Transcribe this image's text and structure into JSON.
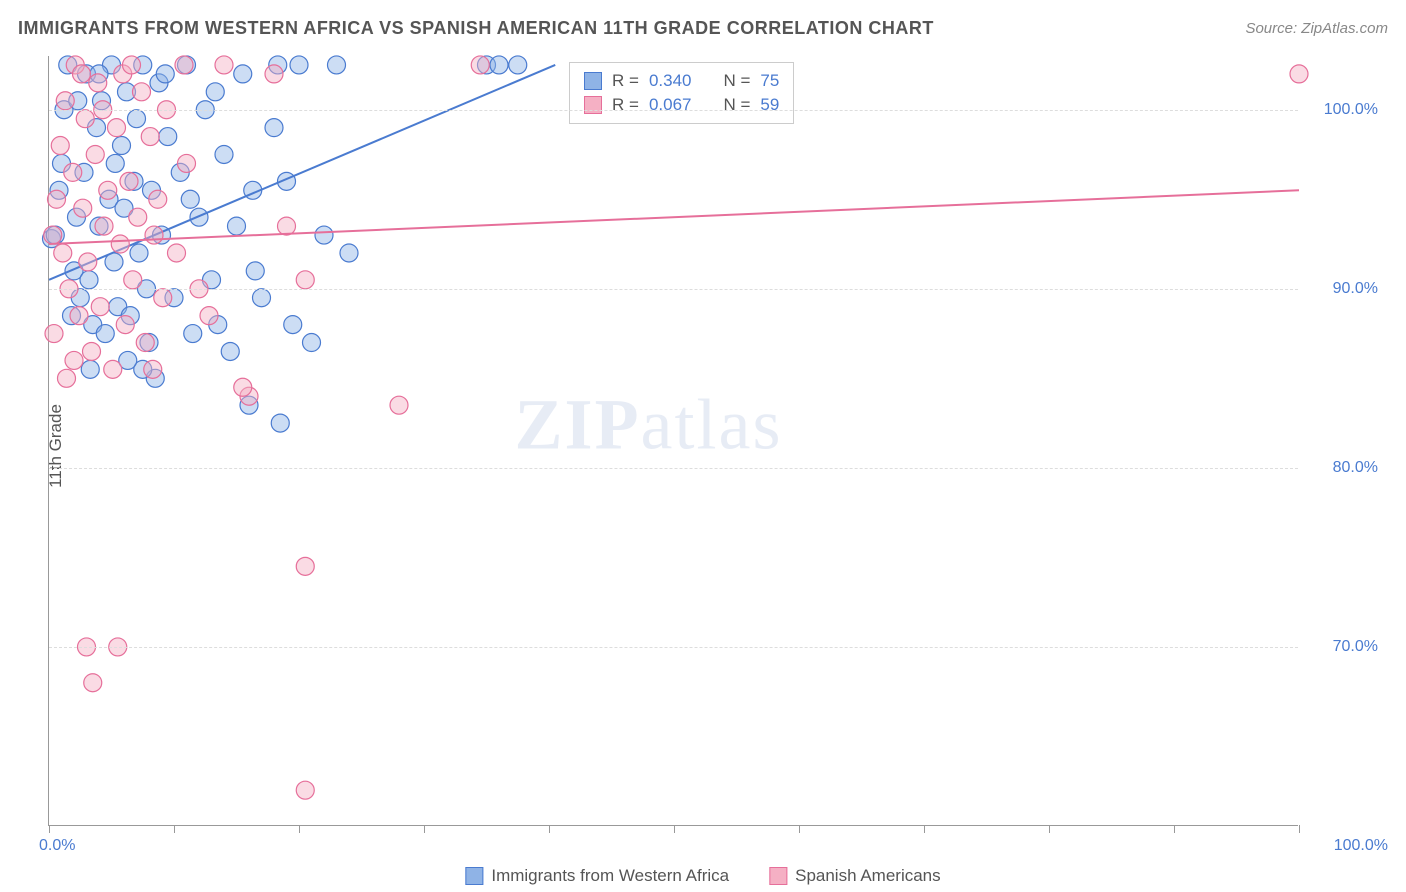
{
  "title": "IMMIGRANTS FROM WESTERN AFRICA VS SPANISH AMERICAN 11TH GRADE CORRELATION CHART",
  "source": "Source: ZipAtlas.com",
  "ylabel": "11th Grade",
  "watermark_a": "ZIP",
  "watermark_b": "atlas",
  "chart": {
    "type": "scatter",
    "background_color": "#ffffff",
    "grid_color": "#dddddd",
    "axis_color": "#999999",
    "tick_label_color": "#4a7bd0",
    "tick_fontsize": 16,
    "title_fontsize": 18,
    "title_color": "#555555",
    "xlim": [
      0,
      100
    ],
    "ylim": [
      60,
      103
    ],
    "xtick_positions": [
      0,
      10,
      20,
      30,
      40,
      50,
      60,
      70,
      80,
      90,
      100
    ],
    "xtick_labels_shown": {
      "0": "0.0%",
      "100": "100.0%"
    },
    "ytick_positions": [
      70,
      80,
      90,
      100
    ],
    "ytick_labels": [
      "70.0%",
      "80.0%",
      "90.0%",
      "100.0%"
    ],
    "marker_radius": 9,
    "marker_opacity": 0.45,
    "line_width": 2,
    "series": [
      {
        "name": "Immigrants from Western Africa",
        "color_fill": "#8fb3e6",
        "color_stroke": "#4a7bd0",
        "R": "0.340",
        "N": "75",
        "trend": {
          "x1": 0,
          "y1": 90.5,
          "x2": 40.5,
          "y2": 102.5
        },
        "points": [
          [
            0.2,
            92.8
          ],
          [
            0.5,
            93.0
          ],
          [
            0.8,
            95.5
          ],
          [
            1.0,
            97.0
          ],
          [
            1.2,
            100.0
          ],
          [
            1.5,
            102.5
          ],
          [
            2.0,
            91.0
          ],
          [
            2.2,
            94.0
          ],
          [
            2.5,
            89.5
          ],
          [
            2.8,
            96.5
          ],
          [
            3.0,
            102.0
          ],
          [
            3.2,
            90.5
          ],
          [
            3.5,
            88.0
          ],
          [
            3.8,
            99.0
          ],
          [
            4.0,
            93.5
          ],
          [
            4.2,
            100.5
          ],
          [
            4.5,
            87.5
          ],
          [
            4.8,
            95.0
          ],
          [
            5.0,
            102.5
          ],
          [
            5.2,
            91.5
          ],
          [
            5.5,
            89.0
          ],
          [
            5.8,
            98.0
          ],
          [
            6.0,
            94.5
          ],
          [
            6.2,
            101.0
          ],
          [
            6.5,
            88.5
          ],
          [
            6.8,
            96.0
          ],
          [
            7.0,
            99.5
          ],
          [
            7.2,
            92.0
          ],
          [
            7.5,
            102.5
          ],
          [
            7.8,
            90.0
          ],
          [
            8.0,
            87.0
          ],
          [
            8.2,
            95.5
          ],
          [
            8.5,
            85.0
          ],
          [
            8.8,
            101.5
          ],
          [
            9.0,
            93.0
          ],
          [
            9.5,
            98.5
          ],
          [
            10.0,
            89.5
          ],
          [
            10.5,
            96.5
          ],
          [
            11.0,
            102.5
          ],
          [
            11.5,
            87.5
          ],
          [
            12.0,
            94.0
          ],
          [
            12.5,
            100.0
          ],
          [
            13.0,
            90.5
          ],
          [
            13.5,
            88.0
          ],
          [
            14.0,
            97.5
          ],
          [
            14.5,
            86.5
          ],
          [
            15.0,
            93.5
          ],
          [
            15.5,
            102.0
          ],
          [
            16.0,
            83.5
          ],
          [
            16.5,
            91.0
          ],
          [
            17.0,
            89.5
          ],
          [
            18.0,
            99.0
          ],
          [
            18.5,
            82.5
          ],
          [
            19.0,
            96.0
          ],
          [
            20.0,
            102.5
          ],
          [
            21.0,
            87.0
          ],
          [
            22.0,
            93.0
          ],
          [
            23.0,
            102.5
          ],
          [
            24.0,
            92.0
          ],
          [
            35.0,
            102.5
          ],
          [
            36.0,
            102.5
          ],
          [
            37.5,
            102.5
          ],
          [
            7.5,
            85.5
          ],
          [
            4.0,
            102.0
          ],
          [
            1.8,
            88.5
          ],
          [
            2.3,
            100.5
          ],
          [
            3.3,
            85.5
          ],
          [
            5.3,
            97.0
          ],
          [
            6.3,
            86.0
          ],
          [
            9.3,
            102.0
          ],
          [
            11.3,
            95.0
          ],
          [
            13.3,
            101.0
          ],
          [
            16.3,
            95.5
          ],
          [
            18.3,
            102.5
          ],
          [
            19.5,
            88.0
          ]
        ]
      },
      {
        "name": "Spanish Americans",
        "color_fill": "#f5b0c4",
        "color_stroke": "#e66f9a",
        "R": "0.067",
        "N": "59",
        "trend": {
          "x1": 0,
          "y1": 92.5,
          "x2": 100,
          "y2": 95.5
        },
        "points": [
          [
            0.3,
            93.0
          ],
          [
            0.6,
            95.0
          ],
          [
            0.9,
            98.0
          ],
          [
            1.1,
            92.0
          ],
          [
            1.3,
            100.5
          ],
          [
            1.6,
            90.0
          ],
          [
            1.9,
            96.5
          ],
          [
            2.1,
            102.5
          ],
          [
            2.4,
            88.5
          ],
          [
            2.7,
            94.5
          ],
          [
            2.9,
            99.5
          ],
          [
            3.1,
            91.5
          ],
          [
            3.4,
            86.5
          ],
          [
            3.7,
            97.5
          ],
          [
            3.9,
            101.5
          ],
          [
            4.1,
            89.0
          ],
          [
            4.4,
            93.5
          ],
          [
            4.7,
            95.5
          ],
          [
            5.1,
            85.5
          ],
          [
            5.4,
            99.0
          ],
          [
            5.7,
            92.5
          ],
          [
            5.9,
            102.0
          ],
          [
            6.1,
            88.0
          ],
          [
            6.4,
            96.0
          ],
          [
            6.7,
            90.5
          ],
          [
            7.1,
            94.0
          ],
          [
            7.4,
            101.0
          ],
          [
            7.7,
            87.0
          ],
          [
            8.1,
            98.5
          ],
          [
            8.4,
            93.0
          ],
          [
            8.7,
            95.0
          ],
          [
            9.1,
            89.5
          ],
          [
            9.4,
            100.0
          ],
          [
            10.2,
            92.0
          ],
          [
            11.0,
            97.0
          ],
          [
            12.0,
            90.0
          ],
          [
            14.0,
            102.5
          ],
          [
            16.0,
            84.0
          ],
          [
            18.0,
            102.0
          ],
          [
            19.0,
            93.5
          ],
          [
            20.5,
            90.5
          ],
          [
            2.0,
            86.0
          ],
          [
            3.0,
            70.0
          ],
          [
            3.5,
            68.0
          ],
          [
            5.5,
            70.0
          ],
          [
            20.5,
            74.5
          ],
          [
            20.5,
            62.0
          ],
          [
            28.0,
            83.5
          ],
          [
            34.5,
            102.5
          ],
          [
            100.0,
            102.0
          ],
          [
            0.4,
            87.5
          ],
          [
            1.4,
            85.0
          ],
          [
            2.6,
            102.0
          ],
          [
            4.3,
            100.0
          ],
          [
            6.6,
            102.5
          ],
          [
            8.3,
            85.5
          ],
          [
            10.8,
            102.5
          ],
          [
            12.8,
            88.5
          ],
          [
            15.5,
            84.5
          ]
        ]
      }
    ],
    "legend": {
      "position": "bottom-center",
      "items": [
        {
          "label": "Immigrants from Western Africa",
          "fill": "#8fb3e6",
          "stroke": "#4a7bd0"
        },
        {
          "label": "Spanish Americans",
          "fill": "#f5b0c4",
          "stroke": "#e66f9a"
        }
      ]
    },
    "stats_box": {
      "border_color": "#cccccc",
      "background": "#ffffff",
      "rows": [
        {
          "swatch_fill": "#8fb3e6",
          "swatch_stroke": "#4a7bd0",
          "R_label": "R =",
          "R": "0.340",
          "N_label": "N =",
          "N": "75"
        },
        {
          "swatch_fill": "#f5b0c4",
          "swatch_stroke": "#e66f9a",
          "R_label": "R =",
          "R": "0.067",
          "N_label": "N =",
          "N": "59"
        }
      ]
    }
  }
}
